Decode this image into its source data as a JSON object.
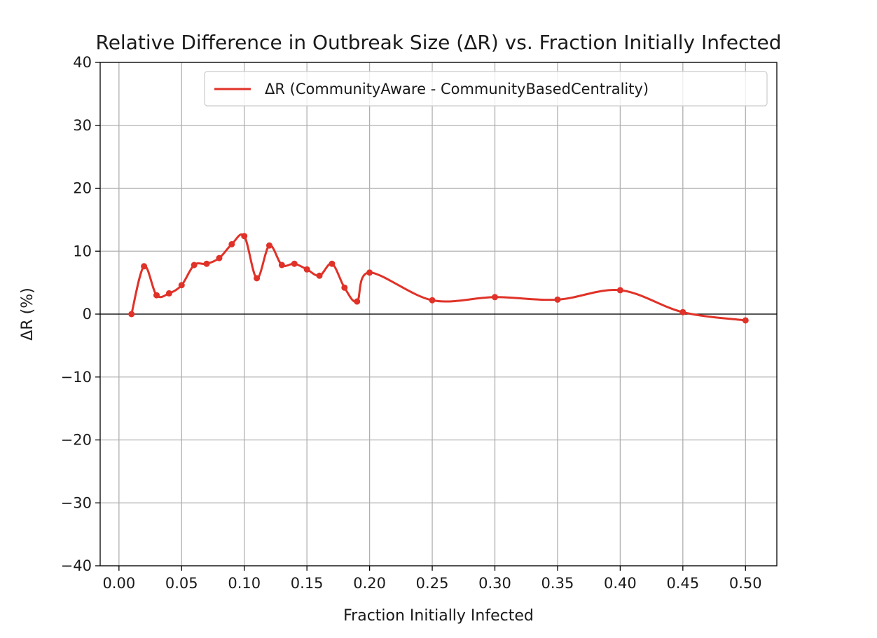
{
  "chart_data": {
    "type": "line",
    "title": "Relative Difference in Outbreak Size (ΔR) vs. Fraction Initially Infected",
    "xlabel": "Fraction Initially Infected",
    "ylabel": "ΔR (%)",
    "xlim": [
      -0.015,
      0.525
    ],
    "ylim": [
      -40,
      40
    ],
    "xticks": [
      0.0,
      0.05,
      0.1,
      0.15,
      0.2,
      0.25,
      0.3,
      0.35,
      0.4,
      0.45,
      0.5
    ],
    "xtick_labels": [
      "0.00",
      "0.05",
      "0.10",
      "0.15",
      "0.20",
      "0.25",
      "0.30",
      "0.35",
      "0.40",
      "0.45",
      "0.50"
    ],
    "yticks": [
      -40,
      -30,
      -20,
      -10,
      0,
      10,
      20,
      30,
      40
    ],
    "ytick_labels": [
      "−40",
      "−30",
      "−20",
      "−10",
      "0",
      "10",
      "20",
      "30",
      "40"
    ],
    "grid": true,
    "zero_line": true,
    "legend_position": "top-right",
    "series": [
      {
        "name": "ΔR (CommunityAware - CommunityBasedCentrality)",
        "color": "#e03228",
        "x": [
          0.01,
          0.02,
          0.03,
          0.04,
          0.05,
          0.06,
          0.07,
          0.08,
          0.09,
          0.1,
          0.11,
          0.12,
          0.13,
          0.14,
          0.15,
          0.16,
          0.17,
          0.18,
          0.19,
          0.2,
          0.25,
          0.3,
          0.35,
          0.4,
          0.45,
          0.5
        ],
        "values": [
          0.0,
          7.6,
          3.0,
          3.3,
          4.6,
          7.8,
          8.0,
          8.9,
          11.1,
          12.4,
          5.7,
          10.9,
          7.8,
          8.0,
          7.1,
          6.1,
          8.0,
          4.2,
          2.0,
          6.6,
          2.2,
          2.7,
          2.3,
          3.8,
          0.3,
          -1.0
        ]
      }
    ]
  }
}
